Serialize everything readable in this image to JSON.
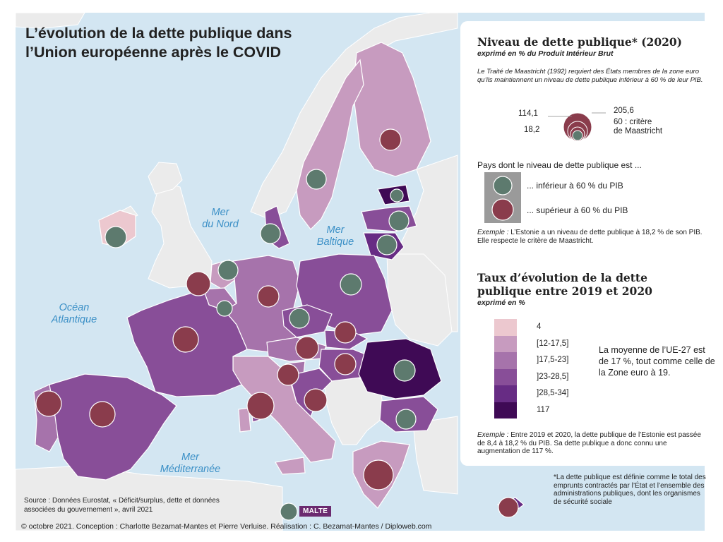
{
  "title_line1": "L’évolution de la dette publique dans",
  "title_line2": "l’Union européenne après le COVID",
  "seas": {
    "nord": [
      "Mer",
      "du Nord"
    ],
    "baltique": [
      "Mer",
      "Baltique"
    ],
    "atlantique": [
      "Océan",
      "Atlantique"
    ],
    "mediterranee": [
      "Mer",
      "Méditerranée"
    ]
  },
  "malte_label": "MALTE",
  "source": "Source : Données Eurostat, « Déficit/surplus, dette et données associées du gouvernement », avril 2021",
  "credits": "© octobre 2021. Conception : Charlotte Bezamat-Mantes et Pierre Verluise. Réalisation : C. Bezamat-Mantes / Diploweb.com",
  "legend": {
    "debt_title": "Niveau de dette publique* (2020)",
    "debt_subtitle": "exprimé en % du Produit Intérieur Brut",
    "maastricht_note": "Le Traité de Maastricht (1992) requiert des États membres de la zone euro qu’ils maintiennent un niveau de dette publique inférieur à 60 % de leur PIB.",
    "prop_values": {
      "v1": "205,6",
      "v2": "114,1",
      "v3": "60 : critère",
      "v3b": "de Maastricht",
      "v4": "18,2"
    },
    "countries_intro": "Pays dont le niveau de dette publique est ...",
    "below_label": "... inférieur à 60 % du PIB",
    "above_label": "... supérieur à 60 % du PIB",
    "example1_label": "Exemple :",
    "example1_text": "L’Estonie a un niveau de dette publique à 18,2 % de son PIB. Elle respecte le critère de Maastricht.",
    "rate_title": "Taux d’évolution de la dette publique entre 2019 et 2020",
    "rate_subtitle": "exprimé en %",
    "classes": [
      {
        "label": "4",
        "color": "#ecc8cf"
      },
      {
        "label": "[12-17,5]",
        "color": "#c79bbf"
      },
      {
        "label": "]17,5-23]",
        "color": "#a673ab"
      },
      {
        "label": "]23-28,5]",
        "color": "#884e98"
      },
      {
        "label": "]28,5-34]",
        "color": "#672c84"
      },
      {
        "label": "117",
        "color": "#3f0a55"
      }
    ],
    "average_text": "La moyenne de l’UE-27 est de 17 %, tout comme celle de la Zone euro à 19.",
    "example2_label": "Exemple :",
    "example2_text": "Entre 2019 et 2020, la dette publique de l’Estonie est passée de 8,4 à 18,2 % du PIB. Sa dette publique a donc connu une augmentation de 117 %.",
    "footnote": "*La dette publique est définie comme le total des emprunts contractés par l’État et l’ensemble des administrations publiques, dont les organismes de sécurité sociale"
  },
  "colors": {
    "sea": "#d3e6f2",
    "non_eu_land": "#ebebeb",
    "circle_below": "#5d7a6e",
    "circle_above": "#8a3c4c"
  }
}
